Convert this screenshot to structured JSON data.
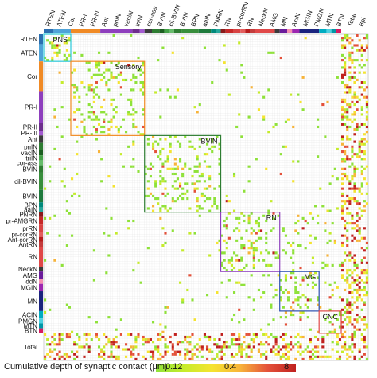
{
  "chart_data": {
    "type": "heatmap",
    "title": "",
    "matrix_size": 132,
    "palette": [
      "#8fe23a",
      "#c6ec2b",
      "#f5e430",
      "#f8b43a",
      "#e4513a",
      "#c0211f"
    ],
    "row_groups": [
      {
        "label": "RTEN",
        "start": 0,
        "end": 4,
        "color": "#2c6fb0"
      },
      {
        "label": "ATEN",
        "start": 4,
        "end": 11,
        "color": "#4fa3d8"
      },
      {
        "label": "Cor",
        "start": 11,
        "end": 23,
        "color": "#f08a25"
      },
      {
        "label": "PR-I",
        "start": 23,
        "end": 36,
        "color": "#8e3fbd"
      },
      {
        "label": "PR-II",
        "start": 36,
        "end": 39,
        "color": "#6d2e8c"
      },
      {
        "label": "PR-III",
        "start": 39,
        "end": 41,
        "color": "#a35ad0"
      },
      {
        "label": "Ant",
        "start": 41,
        "end": 44,
        "color": "#3c3c3c"
      },
      {
        "label": "pnIN",
        "start": 44,
        "end": 47,
        "color": "#2e7d32"
      },
      {
        "label": "vacIN",
        "start": 47,
        "end": 49,
        "color": "#1b5e20"
      },
      {
        "label": "triIN",
        "start": 49,
        "end": 51,
        "color": "#43a047"
      },
      {
        "label": "cor-ass",
        "start": 51,
        "end": 53,
        "color": "#66bb6a"
      },
      {
        "label": "BVIN",
        "start": 53,
        "end": 56,
        "color": "#2e7d32"
      },
      {
        "label": "cil-BVIN",
        "start": 56,
        "end": 63,
        "color": "#388e3c"
      },
      {
        "label": "BVIN",
        "start": 63,
        "end": 68,
        "color": "#1e7a3c"
      },
      {
        "label": "BPN",
        "start": 68,
        "end": 70,
        "color": "#00897b"
      },
      {
        "label": "aaIN",
        "start": 70,
        "end": 72,
        "color": "#26a69a"
      },
      {
        "label": "PNRN",
        "start": 72,
        "end": 74,
        "color": "#8b1a1a"
      },
      {
        "label": "pr-AMGRN",
        "start": 74,
        "end": 77,
        "color": "#c62828"
      },
      {
        "label": "prRN",
        "start": 77,
        "end": 80,
        "color": "#d84343"
      },
      {
        "label": "pr-corRN",
        "start": 80,
        "end": 82,
        "color": "#e35d5d"
      },
      {
        "label": "Ant-corRN",
        "start": 82,
        "end": 84,
        "color": "#b71c1c"
      },
      {
        "label": "AntRN",
        "start": 84,
        "end": 86,
        "color": "#c43c3c"
      },
      {
        "label": "RN",
        "start": 86,
        "end": 94,
        "color": "#e04848"
      },
      {
        "label": "NeckN",
        "start": 94,
        "end": 96,
        "color": "#3a3a3a"
      },
      {
        "label": "AMG",
        "start": 96,
        "end": 99,
        "color": "#6a1b9a"
      },
      {
        "label": "ddN",
        "start": 99,
        "end": 101,
        "color": "#f48fb1"
      },
      {
        "label": "MGIN",
        "start": 101,
        "end": 104,
        "color": "#9c27b0"
      },
      {
        "label": "MN",
        "start": 104,
        "end": 112,
        "color": "#1a237e"
      },
      {
        "label": "ACIN",
        "start": 112,
        "end": 115,
        "color": "#00acc1"
      },
      {
        "label": "PMGN",
        "start": 115,
        "end": 117,
        "color": "#4dd0e1"
      },
      {
        "label": "MTN",
        "start": 117,
        "end": 119,
        "color": "#0097a7"
      },
      {
        "label": "BTN",
        "start": 119,
        "end": 121,
        "color": "#d81b60"
      },
      {
        "label": "Total",
        "start": 121,
        "end": 132,
        "color": "#ffffff"
      }
    ],
    "row_labels_visible": [
      "RTEN",
      "ATEN",
      "Cor",
      "PR-I",
      "PR-II",
      "PR-III",
      "Ant",
      "pnIN",
      "vacIN",
      "triIN",
      "cor-ass",
      "BVIN",
      "cil-BVIN",
      "BVIN",
      "BPN",
      "aaIN",
      "PNRN",
      "pr-AMGRN",
      "prRN",
      "pr-corRN",
      "Ant-corRN",
      "AntRN",
      "RN",
      "NeckN",
      "AMG",
      "ddN",
      "MGIN",
      "MN",
      "ACIN",
      "PMGN",
      "MTN",
      "BTN",
      "Total"
    ],
    "col_labels_visible": [
      "RTEN",
      "ATEN",
      "Cor",
      "PR-I",
      "PR-III",
      "Ant",
      "pnIN",
      "vacIN",
      "triIN",
      "cor-ass",
      "BVIN",
      "cil-BVIN",
      "BVIN",
      "BPN",
      "aaIN",
      "PNRN",
      "RN",
      "pr-corRN",
      "RN",
      "NeckN",
      "AMG",
      "MN",
      "AcIN",
      "MGIN",
      "PMGN",
      "MTN",
      "BTN",
      "Total",
      "Bpi"
    ],
    "modules": [
      {
        "name": "PNS",
        "start": 0,
        "end": 11,
        "color": "#29c7d9"
      },
      {
        "name": "Sensory",
        "start": 11,
        "end": 41,
        "color": "#f08a25"
      },
      {
        "name": "BVIN",
        "start": 41,
        "end": 72,
        "color": "#2e7d32"
      },
      {
        "name": "RN",
        "start": 72,
        "end": 96,
        "color": "#8e3fbd"
      },
      {
        "name": "MG",
        "start": 96,
        "end": 112,
        "color": "#2c4fb0"
      },
      {
        "name": "CNC",
        "start": 112,
        "end": 121,
        "color": "#e04848"
      }
    ],
    "colorbar": {
      "title": "Cumulative depth of synaptic contact (μm)",
      "tick_labels": [
        "0.12",
        "0.4",
        "8"
      ],
      "scale": "log"
    }
  }
}
